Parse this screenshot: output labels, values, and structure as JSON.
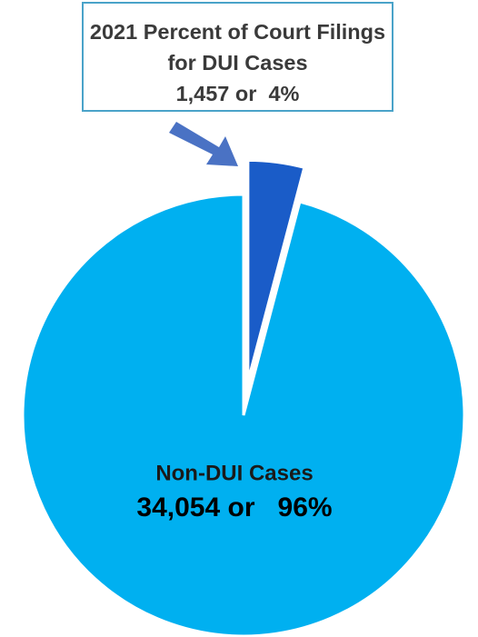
{
  "chart_data": {
    "type": "pie",
    "categories": [
      "2021 Percent of Court Filings for DUI Cases",
      "Non-DUI Cases"
    ],
    "values": [
      1457,
      34054
    ],
    "value_labels": [
      "1,457 or  4%",
      "34,054 or   96%"
    ],
    "colors": [
      "#1a5cc8",
      "#00b0f0"
    ]
  }
}
